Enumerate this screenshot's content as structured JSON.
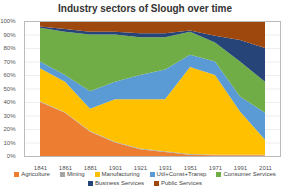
{
  "chart_data": {
    "type": "area",
    "title": "Industry sectors of Slough over time",
    "stacked": true,
    "grid": true,
    "legend": "bottom",
    "categories": [
      "1841",
      "1861",
      "1881",
      "1901",
      "1921",
      "1931",
      "1951",
      "1971",
      "1991",
      "2011"
    ],
    "series": [
      {
        "name": "Agriculture",
        "color": "#ed7d31",
        "values": [
          40,
          32,
          18,
          10,
          5,
          3,
          1,
          0.5,
          0.5,
          0.5
        ]
      },
      {
        "name": "Mining",
        "color": "#a5a5a5",
        "values": [
          0.5,
          0.5,
          0.5,
          0.5,
          0.5,
          0.5,
          0.5,
          0.5,
          0.5,
          0.5
        ]
      },
      {
        "name": "Manufacturing",
        "color": "#ffc000",
        "values": [
          24.5,
          22.5,
          16.5,
          31.5,
          36.5,
          38.5,
          64.5,
          59,
          32,
          11
        ]
      },
      {
        "name": "Util+Const+Transp",
        "color": "#5b9bd5",
        "values": [
          5,
          5,
          13,
          13,
          18,
          22,
          9,
          10,
          11,
          20
        ]
      },
      {
        "name": "Consumer Services",
        "color": "#70ad47",
        "values": [
          25,
          32,
          42,
          35,
          28,
          24,
          17,
          14,
          26,
          23
        ]
      },
      {
        "name": "Business Services",
        "color": "#264478",
        "values": [
          1,
          2,
          2,
          2,
          3,
          3,
          1,
          5,
          16,
          25
        ]
      },
      {
        "name": "Public Services",
        "color": "#9e480e",
        "values": [
          4,
          6,
          8,
          8,
          9,
          9,
          7,
          11,
          14,
          20
        ]
      }
    ],
    "ylim": [
      0,
      100
    ],
    "yticks": [
      {
        "value": 0,
        "label": "0%"
      },
      {
        "value": 10,
        "label": "10%"
      },
      {
        "value": 20,
        "label": "20%"
      },
      {
        "value": 30,
        "label": "30%"
      },
      {
        "value": 40,
        "label": "40%"
      },
      {
        "value": 50,
        "label": "50%"
      },
      {
        "value": 60,
        "label": "60%"
      },
      {
        "value": 70,
        "label": "70%"
      },
      {
        "value": 80,
        "label": "80%"
      },
      {
        "value": 90,
        "label": "90%"
      },
      {
        "value": 100,
        "label": "100%"
      }
    ]
  }
}
